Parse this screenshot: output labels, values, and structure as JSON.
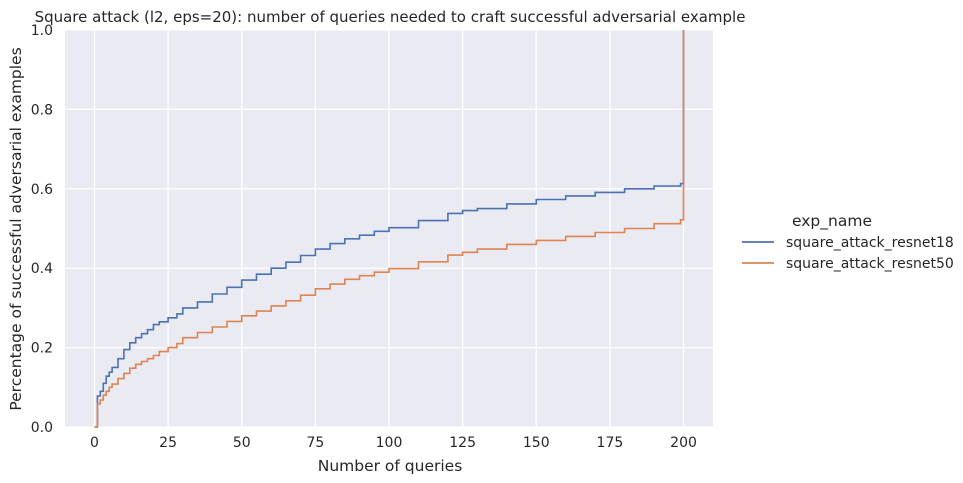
{
  "chart_data": {
    "type": "line",
    "step": true,
    "title": "Square attack (l2, eps=20): number of queries needed to craft successful adversarial example",
    "xlabel": "Number of queries",
    "ylabel": "Percentage of successful adversarial examples",
    "xlim": [
      -10,
      210
    ],
    "ylim": [
      0,
      1.0
    ],
    "xticks": [
      0,
      25,
      50,
      75,
      100,
      125,
      150,
      175,
      200
    ],
    "yticks": [
      0.0,
      0.2,
      0.4,
      0.6,
      0.8,
      1.0
    ],
    "xtick_labels": [
      "0",
      "25",
      "50",
      "75",
      "100",
      "125",
      "150",
      "175",
      "200"
    ],
    "ytick_labels": [
      "0.0",
      "0.2",
      "0.4",
      "0.6",
      "0.8",
      "1.0"
    ],
    "grid": true,
    "background": "#eaeaf2",
    "legend": {
      "title": "exp_name",
      "placement": "right-outside"
    },
    "series": [
      {
        "name": "square_attack_resnet18",
        "color": "#4c72b0",
        "x": [
          0,
          1,
          2,
          3,
          4,
          5,
          6,
          8,
          10,
          12,
          14,
          16,
          18,
          20,
          22,
          25,
          28,
          30,
          35,
          40,
          45,
          50,
          55,
          60,
          65,
          70,
          75,
          80,
          85,
          90,
          95,
          100,
          110,
          120,
          125,
          130,
          140,
          150,
          160,
          170,
          180,
          190,
          199,
          200,
          200
        ],
        "y": [
          0.0,
          0.078,
          0.09,
          0.11,
          0.128,
          0.138,
          0.15,
          0.172,
          0.195,
          0.212,
          0.225,
          0.235,
          0.245,
          0.258,
          0.265,
          0.275,
          0.285,
          0.3,
          0.315,
          0.335,
          0.352,
          0.37,
          0.385,
          0.4,
          0.415,
          0.432,
          0.448,
          0.462,
          0.474,
          0.483,
          0.493,
          0.502,
          0.52,
          0.538,
          0.545,
          0.55,
          0.562,
          0.573,
          0.582,
          0.591,
          0.6,
          0.607,
          0.613,
          0.613,
          1.0
        ]
      },
      {
        "name": "square_attack_resnet50",
        "color": "#dd8452",
        "x": [
          0,
          1,
          2,
          3,
          4,
          5,
          6,
          8,
          10,
          12,
          14,
          16,
          18,
          20,
          22,
          25,
          28,
          30,
          35,
          40,
          45,
          50,
          55,
          60,
          65,
          70,
          75,
          80,
          85,
          90,
          95,
          100,
          110,
          120,
          125,
          130,
          140,
          150,
          160,
          170,
          180,
          190,
          199,
          200,
          200
        ],
        "y": [
          0.0,
          0.058,
          0.068,
          0.08,
          0.09,
          0.1,
          0.108,
          0.122,
          0.135,
          0.148,
          0.158,
          0.165,
          0.172,
          0.18,
          0.19,
          0.2,
          0.21,
          0.225,
          0.238,
          0.252,
          0.266,
          0.28,
          0.292,
          0.305,
          0.318,
          0.332,
          0.348,
          0.36,
          0.372,
          0.381,
          0.39,
          0.399,
          0.416,
          0.433,
          0.44,
          0.448,
          0.46,
          0.47,
          0.48,
          0.49,
          0.5,
          0.512,
          0.522,
          0.522,
          1.0
        ]
      }
    ]
  }
}
